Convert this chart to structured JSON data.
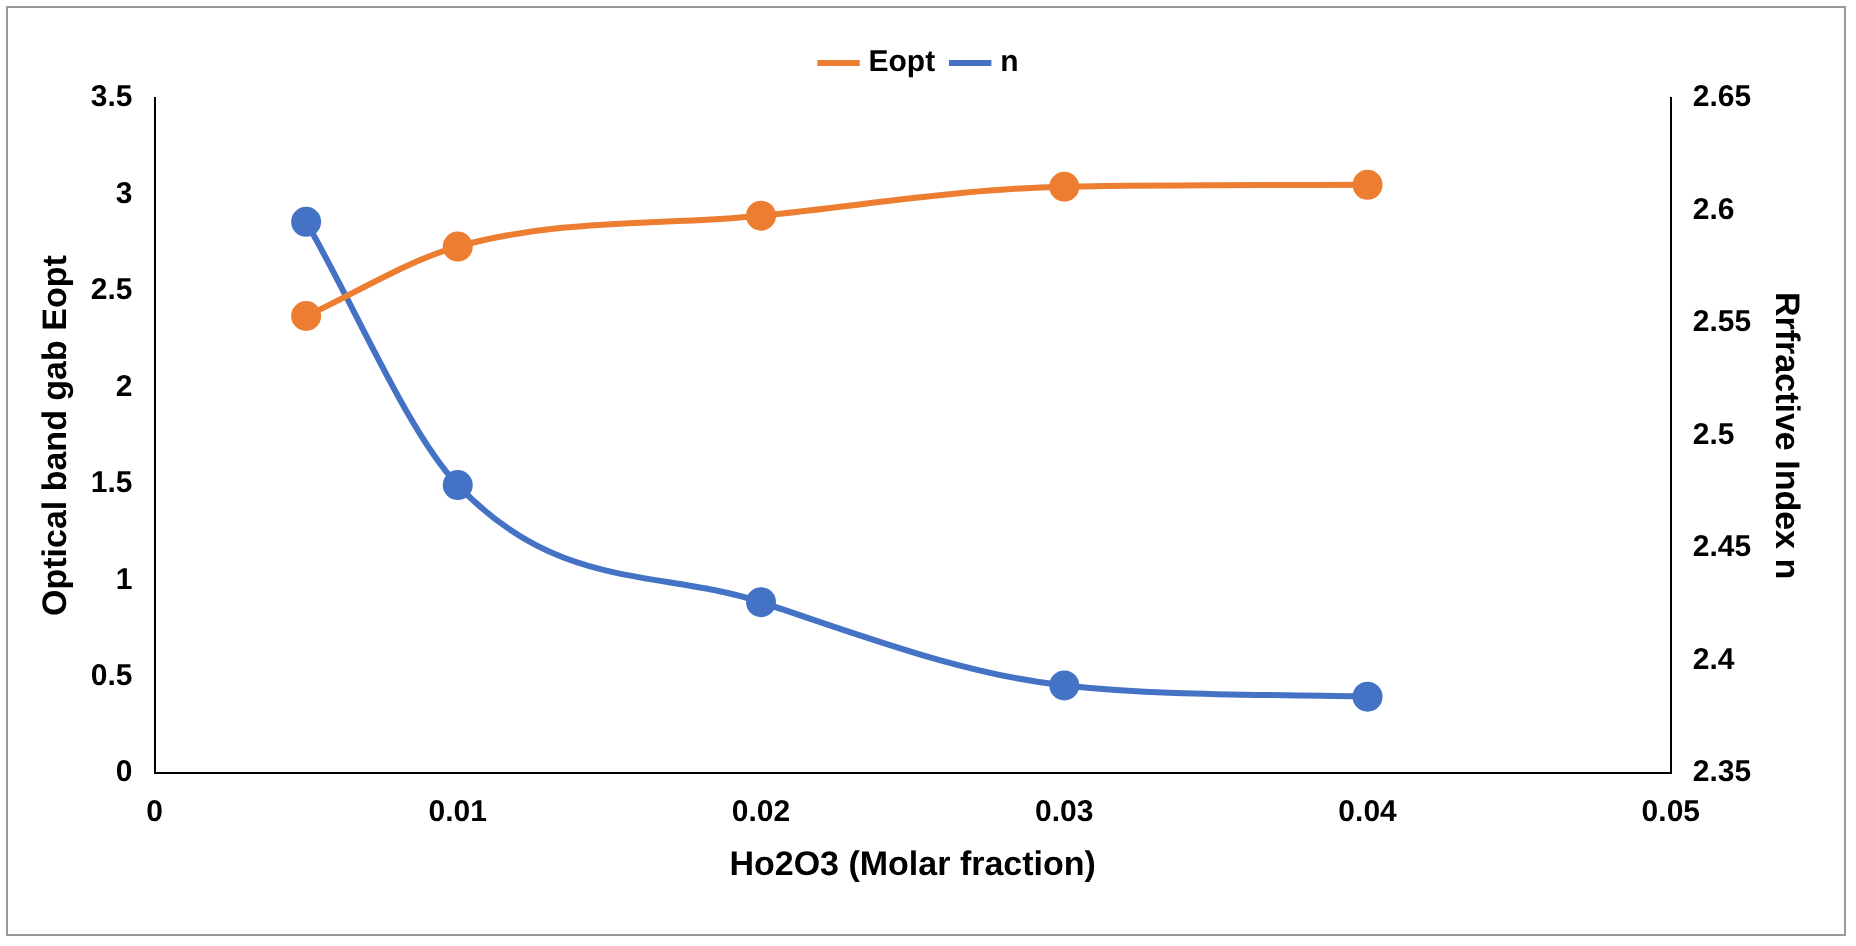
{
  "chart_data": {
    "type": "line",
    "xlabel": "Ho2O3 (Molar fraction)",
    "ylabel": "Optical band gab Eopt",
    "y2label": "Rrfractive Index n",
    "x": [
      0.005,
      0.01,
      0.02,
      0.03,
      0.04
    ],
    "series": [
      {
        "name": "Eopt",
        "color": "#ed7d31",
        "values": [
          2.37,
          2.73,
          2.89,
          3.04,
          3.05
        ]
      },
      {
        "name": "n",
        "color": "#4472c4",
        "axis": "y2",
        "values": [
          2.595,
          2.478,
          2.426,
          2.389,
          2.384
        ]
      }
    ],
    "xlim": [
      0,
      0.05
    ],
    "xticks": [
      0,
      0.01,
      0.02,
      0.03,
      0.04,
      0.05
    ],
    "ylim": [
      0,
      3.5
    ],
    "yticks": [
      0,
      0.5,
      1,
      1.5,
      2,
      2.5,
      3,
      3.5
    ],
    "y2lim": [
      2.35,
      2.65
    ],
    "y2ticks": [
      2.35,
      2.4,
      2.45,
      2.5,
      2.55,
      2.6,
      2.65
    ],
    "legend": "top",
    "grid": false,
    "marker": "circle",
    "line_style": "solid"
  }
}
